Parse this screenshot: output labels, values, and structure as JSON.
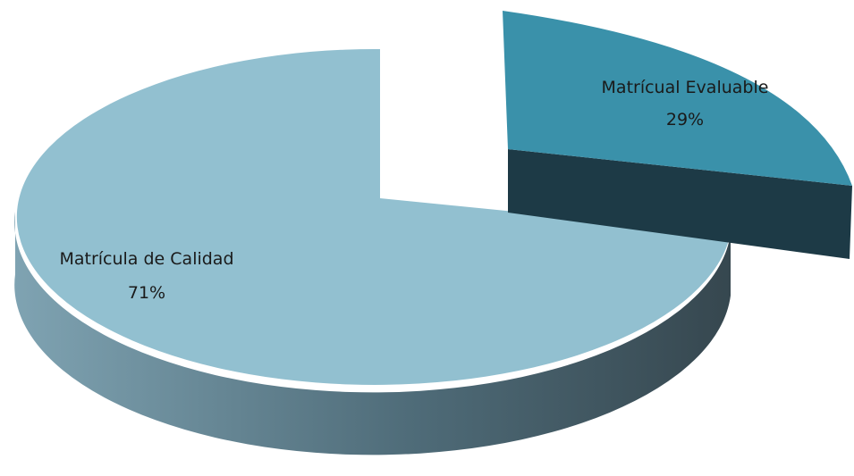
{
  "chart_data": {
    "type": "pie",
    "title": "",
    "slices": [
      {
        "name": "Matrícula de Calidad",
        "percent_label": "71%",
        "value": 71,
        "color": "#92c0d0",
        "exploded": false
      },
      {
        "name": "Matrícual Evaluable",
        "percent_label": "29%",
        "value": 29,
        "color": "#3a91aa",
        "exploded": true
      }
    ],
    "legend": "none",
    "style": "3d-exploded"
  }
}
